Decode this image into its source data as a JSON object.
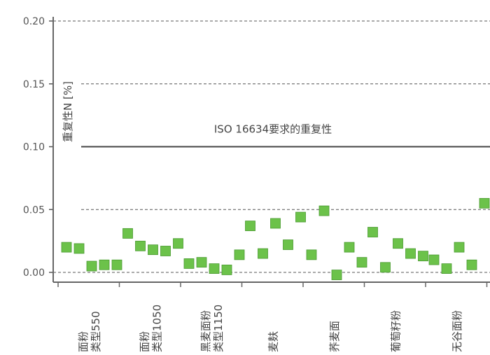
{
  "chart_data": {
    "type": "scatter",
    "ylabel": "重复性N [%]",
    "ylim": [
      0,
      0.2
    ],
    "yticks": [
      "0.00",
      "0.05",
      "0.10",
      "0.15",
      "0.20"
    ],
    "grid": true,
    "annotation": {
      "text": "ISO 16634要求的重复性",
      "y": 0.1
    },
    "categories": [
      {
        "lines": [
          "面粉",
          "类型550"
        ],
        "values": [
          0.02,
          0.019,
          0.005,
          0.006,
          0.006
        ]
      },
      {
        "lines": [
          "面粉",
          "类型1050"
        ],
        "values": [
          0.031,
          0.021,
          0.018,
          0.017,
          0.023
        ]
      },
      {
        "lines": [
          "黑麦面粉",
          "类型1150"
        ],
        "values": [
          0.007,
          0.008,
          0.003,
          0.002,
          0.014
        ]
      },
      {
        "lines": [
          "麦麸"
        ],
        "values": [
          0.037,
          0.015,
          0.039,
          0.022,
          0.044
        ]
      },
      {
        "lines": [
          "荞麦面"
        ],
        "values": [
          0.014,
          0.049,
          -0.002,
          0.02,
          0.008
        ]
      },
      {
        "lines": [
          "葡萄籽粉"
        ],
        "values": [
          0.032,
          0.004,
          0.023,
          0.015,
          0.013
        ]
      },
      {
        "lines": [
          "无谷面粉"
        ],
        "values": [
          0.01,
          0.003,
          0.02,
          0.006,
          0.055
        ]
      }
    ],
    "marker_color": "#6cc24a"
  }
}
